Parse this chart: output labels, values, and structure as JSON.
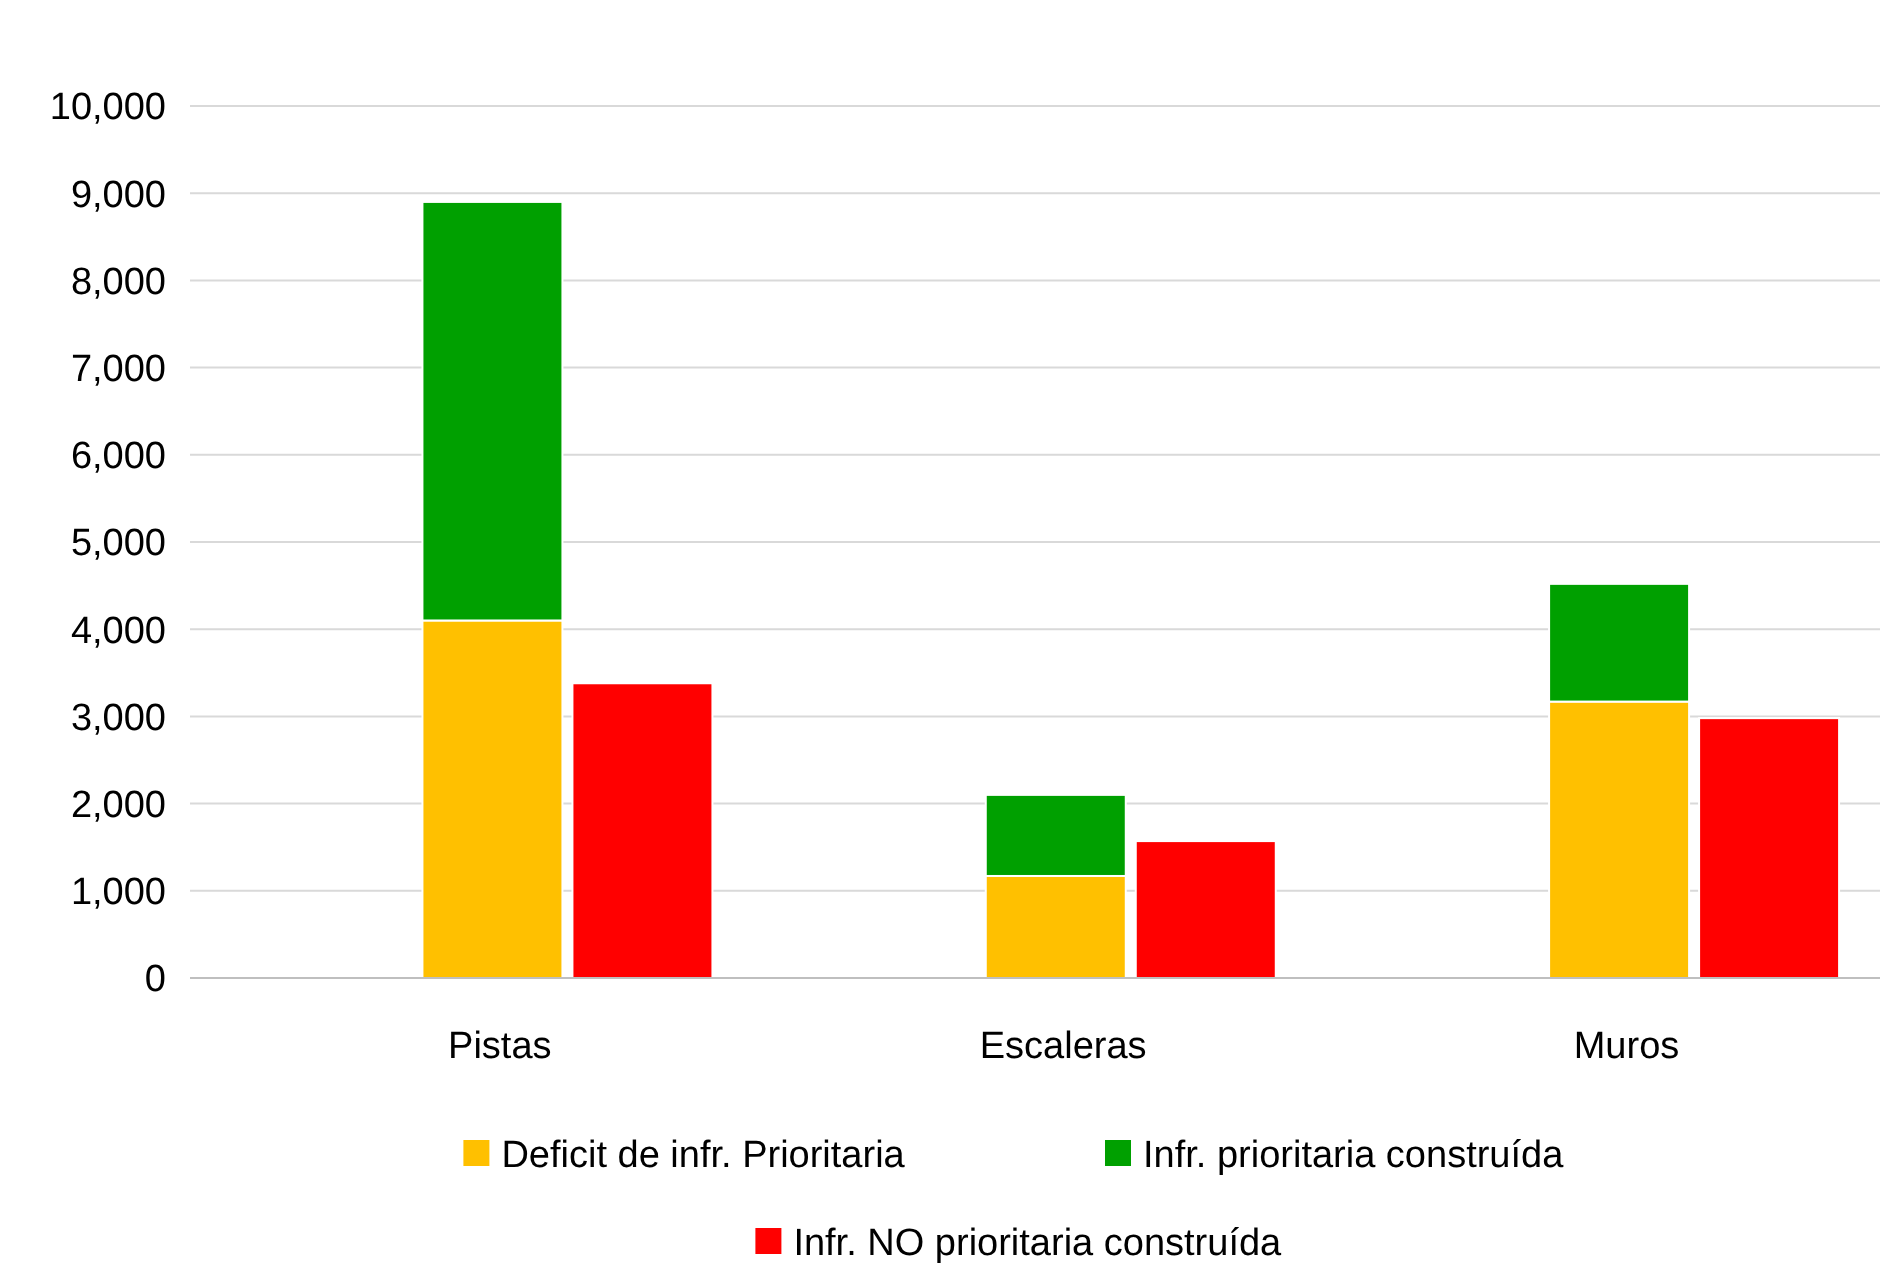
{
  "chart_data": {
    "type": "bar",
    "categories": [
      "Pistas",
      null,
      "Escaleras",
      null,
      "Muros",
      null
    ],
    "stacked": true,
    "series": [
      {
        "name": "Deficit de infr. Prioritaria",
        "color": "#ffc000",
        "values": [
          4100,
          null,
          1170,
          null,
          3170,
          null
        ]
      },
      {
        "name": "Infr. prioritaria construída",
        "color": "#00a000",
        "values": [
          4800,
          null,
          930,
          null,
          1350,
          null
        ]
      },
      {
        "name": "Infr. NO prioritaria construída",
        "color": "#ff0000",
        "values": [
          null,
          3380,
          null,
          1570,
          null,
          2980
        ]
      }
    ],
    "ylim": [
      0,
      10000
    ],
    "yticks": [
      {
        "value": 0,
        "label": "0"
      },
      {
        "value": 1000,
        "label": "1,000"
      },
      {
        "value": 2000,
        "label": "2,000"
      },
      {
        "value": 3000,
        "label": "3,000"
      },
      {
        "value": 4000,
        "label": "4,000"
      },
      {
        "value": 5000,
        "label": "5,000"
      },
      {
        "value": 6000,
        "label": "6,000"
      },
      {
        "value": 7000,
        "label": "7,000"
      },
      {
        "value": 8000,
        "label": "8,000"
      },
      {
        "value": 9000,
        "label": "9,000"
      },
      {
        "value": 10000,
        "label": "10,000"
      }
    ],
    "grid": "y",
    "legend": "bottom"
  }
}
